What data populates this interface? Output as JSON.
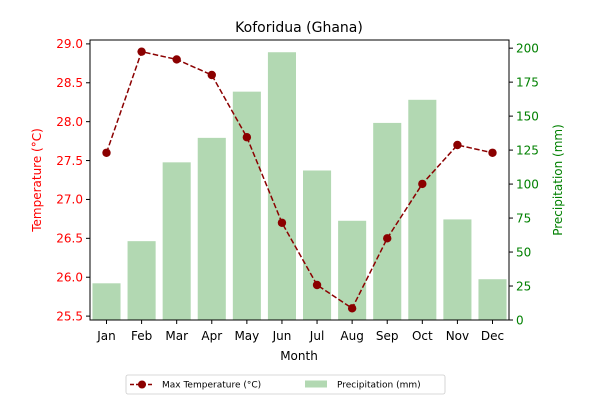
{
  "chart_data": {
    "type": "bar+line",
    "title": "Koforidua (Ghana)",
    "xlabel": "Month",
    "categories": [
      "Jan",
      "Feb",
      "Mar",
      "Apr",
      "May",
      "Jun",
      "Jul",
      "Aug",
      "Sep",
      "Oct",
      "Nov",
      "Dec"
    ],
    "left_axis": {
      "label": "Temperature (°C)",
      "color": "#ff0000",
      "ylim": [
        25.45,
        29.05
      ],
      "ticks": [
        "25.5",
        "26.0",
        "26.5",
        "27.0",
        "27.5",
        "28.0",
        "28.5",
        "29.0"
      ]
    },
    "right_axis": {
      "label": "Precipitation (mm)",
      "color": "#008000",
      "ylim": [
        0,
        206
      ],
      "ticks": [
        "0",
        "25",
        "50",
        "75",
        "100",
        "125",
        "150",
        "175",
        "200"
      ]
    },
    "series": [
      {
        "name": "Max Temperature (°C)",
        "kind": "line",
        "axis": "left",
        "color": "#8b0000",
        "style": "dashed-with-circle-markers",
        "values": [
          27.6,
          28.9,
          28.8,
          28.6,
          27.8,
          26.7,
          25.9,
          25.6,
          26.5,
          27.2,
          27.7,
          27.6
        ]
      },
      {
        "name": "Precipitation (mm)",
        "kind": "bar",
        "axis": "right",
        "color": "#b2d8b2",
        "values": [
          27,
          58,
          116,
          134,
          168,
          197,
          110,
          73,
          145,
          162,
          74,
          30
        ]
      }
    ],
    "legend": {
      "placement": "bottom-center",
      "columns": 2
    }
  }
}
